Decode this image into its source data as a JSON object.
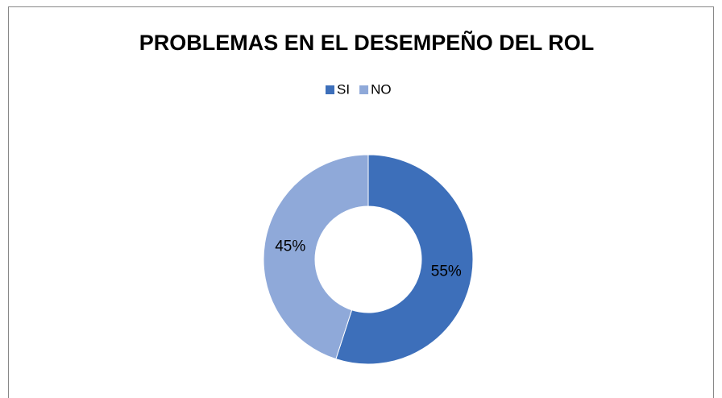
{
  "chart_data": {
    "type": "donut",
    "title": "PROBLEMAS EN EL DESEMPEÑO DEL ROL",
    "categories": [
      "SI",
      "NO"
    ],
    "series": [
      {
        "values": [
          55,
          45
        ],
        "value_labels": [
          "55%",
          "45%"
        ],
        "colors": [
          "#3d6fba",
          "#8fa9d9"
        ]
      }
    ]
  }
}
